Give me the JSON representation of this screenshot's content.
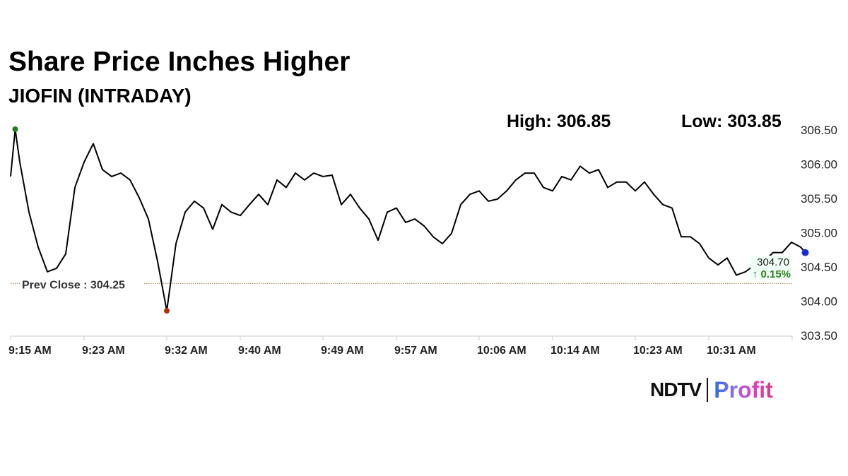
{
  "chart_data": {
    "type": "line",
    "title": "Share Price Inches Higher",
    "subtitle": "JIOFIN (INTRADAY)",
    "high_label": "High: 306.85",
    "low_label": "Low: 303.85",
    "prev_close": {
      "label": "Prev Close : 304.25",
      "value": 304.25
    },
    "last": {
      "price": "304.70",
      "change": "↑ 0.15%",
      "value": 304.7
    },
    "ylim": [
      303.5,
      306.5
    ],
    "y_ticks": [
      "306.50",
      "306.00",
      "305.50",
      "305.00",
      "304.50",
      "304.00",
      "303.50"
    ],
    "x_ticks": [
      "9:15 AM",
      "9:23 AM",
      "9:32 AM",
      "9:40 AM",
      "9:49 AM",
      "9:57 AM",
      "10:06 AM",
      "10:14 AM",
      "10:23 AM",
      "10:31 AM"
    ],
    "x_tick_minutes": [
      0,
      8,
      17,
      25,
      34,
      42,
      51,
      59,
      68,
      76
    ],
    "x_start": "9:15 AM",
    "series": [
      {
        "minutes": [
          0,
          0.5,
          1,
          2,
          3,
          4,
          5,
          6,
          7,
          8,
          9,
          10,
          11,
          12,
          13,
          14,
          15,
          16,
          17,
          18,
          19,
          20,
          21,
          22,
          23,
          24,
          25,
          26,
          27,
          28,
          29,
          30,
          31,
          32,
          33,
          34,
          35,
          36,
          37,
          38,
          39,
          40,
          41,
          42,
          43,
          44,
          45,
          46,
          47,
          48,
          49,
          50,
          51,
          52,
          53,
          54,
          55,
          56,
          57,
          58,
          59,
          60,
          61,
          62,
          63,
          64,
          65,
          66,
          67,
          68,
          69,
          70,
          71,
          72,
          73,
          74,
          75,
          76,
          77,
          78,
          79,
          80,
          81,
          82,
          83,
          84,
          85,
          86,
          86.5
        ],
        "values": [
          305.81,
          306.5,
          306.02,
          305.29,
          304.78,
          304.42,
          304.47,
          304.68,
          305.65,
          306.02,
          306.29,
          305.91,
          305.81,
          305.86,
          305.76,
          305.5,
          305.19,
          304.57,
          303.85,
          304.83,
          305.29,
          305.45,
          305.35,
          305.04,
          305.4,
          305.29,
          305.24,
          305.4,
          305.55,
          305.4,
          305.76,
          305.65,
          305.86,
          305.76,
          305.86,
          305.81,
          305.83,
          305.4,
          305.55,
          305.35,
          305.19,
          304.88,
          305.29,
          305.35,
          305.14,
          305.19,
          305.09,
          304.93,
          304.83,
          304.98,
          305.4,
          305.55,
          305.6,
          305.45,
          305.48,
          305.6,
          305.76,
          305.86,
          305.86,
          305.65,
          305.6,
          305.81,
          305.76,
          305.96,
          305.86,
          305.91,
          305.65,
          305.73,
          305.73,
          305.6,
          305.73,
          305.55,
          305.4,
          305.35,
          304.93,
          304.93,
          304.83,
          304.62,
          304.52,
          304.62,
          304.37,
          304.42,
          304.52,
          304.57,
          304.7,
          304.7,
          304.85,
          304.78,
          304.7
        ]
      }
    ],
    "colors": {
      "line": "#000000",
      "high_dot": "#1f7a1f",
      "low_dot": "#b03010",
      "last_dot": "#1a2ad0",
      "prev_close": "#a07040",
      "change": "#2e7d1e"
    },
    "grid": false
  },
  "logo": {
    "ndtv": "NDTV",
    "profit": "Profit"
  }
}
